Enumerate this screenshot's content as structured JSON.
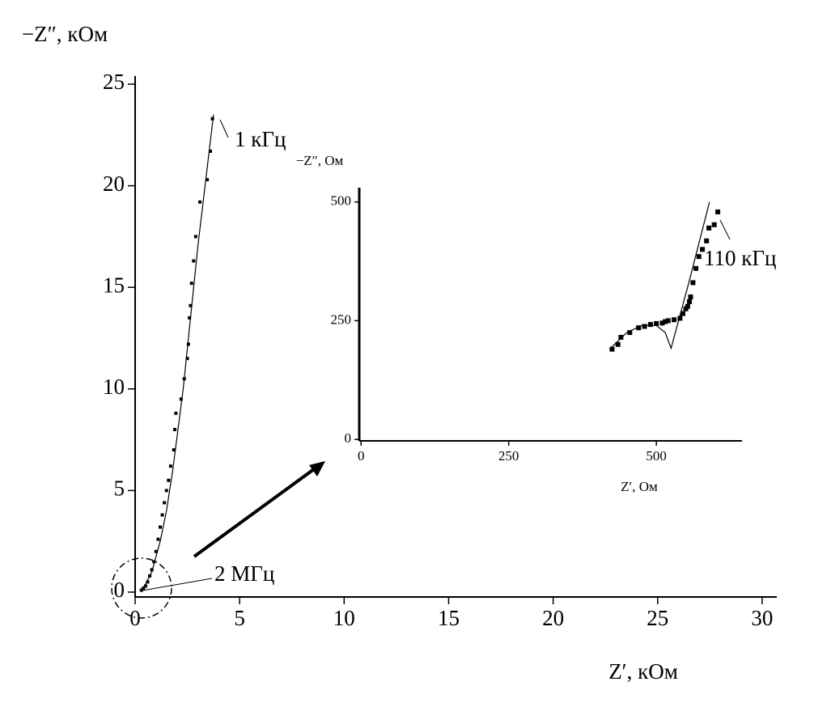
{
  "chart_data": [
    {
      "type": "scatter",
      "x_label": "Z′, кОм",
      "y_label": "−Z″, кОм",
      "xlim": [
        0,
        30.7
      ],
      "ylim": [
        -0.24,
        25.4
      ],
      "xticks": [
        0,
        5,
        10,
        15,
        20,
        25,
        30
      ],
      "yticks": [
        0,
        5,
        10,
        15,
        20,
        25
      ],
      "color": "#000000",
      "series": [
        {
          "mode": "markers",
          "x": [
            0.3,
            0.4,
            0.5,
            0.6,
            0.7,
            0.8,
            0.9,
            1.0,
            1.1,
            1.2,
            1.3,
            1.4,
            1.5,
            1.6,
            1.7,
            1.85,
            1.9,
            1.95,
            2.2,
            2.35,
            2.5,
            2.55,
            2.6,
            2.65,
            2.7,
            2.8,
            2.9,
            3.1,
            3.45,
            3.6,
            3.7
          ],
          "values": [
            0.1,
            0.2,
            0.3,
            0.5,
            0.8,
            1.1,
            1.5,
            2.0,
            2.6,
            3.2,
            3.8,
            4.4,
            5.0,
            5.5,
            6.2,
            7.0,
            8.0,
            8.8,
            9.5,
            10.5,
            11.5,
            12.2,
            13.5,
            14.1,
            15.2,
            16.3,
            17.5,
            19.2,
            20.3,
            21.7,
            23.3
          ]
        },
        {
          "mode": "line",
          "x": [
            0.3,
            0.8,
            1.2,
            1.5,
            1.8,
            2.3,
            3.0,
            3.75
          ],
          "values": [
            0,
            1,
            2.5,
            4,
            6,
            10,
            17,
            23.5
          ]
        }
      ],
      "annotations": [
        "1 кГц",
        "2 МГц"
      ]
    },
    {
      "type": "scatter",
      "x_label": "Z′, Ом",
      "y_label": "−Z″, Ом",
      "xlim": [
        -3,
        645
      ],
      "ylim": [
        -3,
        530
      ],
      "xticks": [
        0,
        250,
        500
      ],
      "yticks": [
        0,
        250,
        500
      ],
      "color": "#000000",
      "series": [
        {
          "mode": "markers",
          "x": [
            425,
            435,
            440,
            455,
            470,
            480,
            490,
            500,
            510,
            515,
            520,
            530,
            540,
            545,
            550,
            553,
            556,
            558,
            562,
            567,
            572,
            578,
            585,
            589,
            598,
            604
          ],
          "values": [
            190,
            200,
            215,
            225,
            235,
            238,
            242,
            244,
            245,
            248,
            250,
            252,
            255,
            265,
            275,
            280,
            290,
            300,
            330,
            360,
            385,
            400,
            418,
            445,
            452,
            479
          ]
        },
        {
          "mode": "line",
          "x": [
            425,
            450,
            475,
            500,
            515,
            525,
            555,
            590
          ],
          "values": [
            195,
            225,
            240,
            240,
            225,
            192,
            330,
            500
          ]
        }
      ],
      "annotations": [
        "110 кГц"
      ]
    }
  ]
}
